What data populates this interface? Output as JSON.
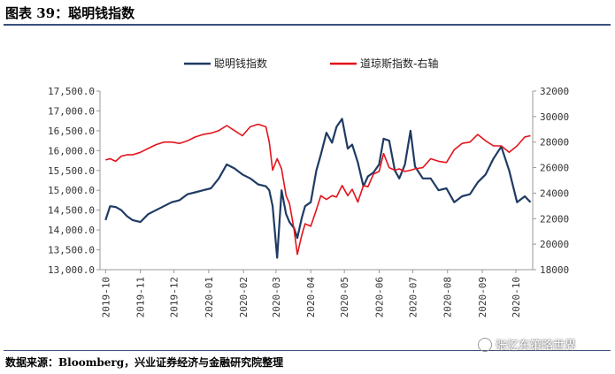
{
  "header": {
    "title": "图表 39：聪明钱指数"
  },
  "footer": {
    "source": "数据来源：Bloomberg，兴业证券经济与金融研究院整理",
    "watermark": "张忆东策略世界"
  },
  "colors": {
    "smart_money": "#1f3b63",
    "dow": "#e3131b",
    "rule": "#3a4f7a"
  },
  "chart_data": {
    "type": "line",
    "legend_position": "top-center",
    "grid": false,
    "x_ticks": [
      "2019-10",
      "2019-11",
      "2019-12",
      "2020-01",
      "2020-02",
      "2020-03",
      "2020-04",
      "2020-05",
      "2020-06",
      "2020-07",
      "2020-08",
      "2020-09",
      "2020-10"
    ],
    "y_left": {
      "lim": [
        13000,
        17500
      ],
      "ticks": [
        "13,000.0",
        "13,500.0",
        "14,000.0",
        "14,500.0",
        "15,000.0",
        "15,500.0",
        "16,000.0",
        "16,500.0",
        "17,000.0",
        "17,500.0"
      ]
    },
    "y_right": {
      "lim": [
        18000,
        32000
      ],
      "ticks": [
        "18000",
        "20000",
        "22000",
        "24000",
        "26000",
        "28000",
        "30000",
        "32000"
      ]
    },
    "series": [
      {
        "name": "聪明钱指数",
        "axis": "left",
        "x": [
          "2019-10-01",
          "2019-10-05",
          "2019-10-10",
          "2019-10-15",
          "2019-10-20",
          "2019-10-25",
          "2019-11-01",
          "2019-11-08",
          "2019-11-15",
          "2019-11-22",
          "2019-11-29",
          "2019-12-06",
          "2019-12-13",
          "2019-12-20",
          "2019-12-27",
          "2020-01-03",
          "2020-01-10",
          "2020-01-17",
          "2020-01-24",
          "2020-01-31",
          "2020-02-07",
          "2020-02-14",
          "2020-02-21",
          "2020-02-24",
          "2020-02-27",
          "2020-03-02",
          "2020-03-06",
          "2020-03-10",
          "2020-03-13",
          "2020-03-17",
          "2020-03-20",
          "2020-03-24",
          "2020-03-27",
          "2020-04-01",
          "2020-04-06",
          "2020-04-10",
          "2020-04-15",
          "2020-04-20",
          "2020-04-24",
          "2020-04-29",
          "2020-05-04",
          "2020-05-08",
          "2020-05-13",
          "2020-05-18",
          "2020-05-22",
          "2020-05-27",
          "2020-06-01",
          "2020-06-05",
          "2020-06-10",
          "2020-06-15",
          "2020-06-19",
          "2020-06-24",
          "2020-06-29",
          "2020-07-03",
          "2020-07-10",
          "2020-07-17",
          "2020-07-24",
          "2020-07-31",
          "2020-08-07",
          "2020-08-14",
          "2020-08-21",
          "2020-08-28",
          "2020-09-04",
          "2020-09-11",
          "2020-09-18",
          "2020-09-25",
          "2020-10-02",
          "2020-10-09",
          "2020-10-14"
        ],
        "values": [
          14250,
          14600,
          14580,
          14500,
          14350,
          14250,
          14200,
          14400,
          14500,
          14600,
          14700,
          14750,
          14900,
          14950,
          15000,
          15050,
          15300,
          15650,
          15550,
          15400,
          15300,
          15150,
          15100,
          15000,
          14600,
          13300,
          15000,
          14400,
          14200,
          14050,
          13800,
          14300,
          14600,
          14700,
          15500,
          15900,
          16450,
          16200,
          16600,
          16800,
          16050,
          16150,
          15700,
          15100,
          15350,
          15450,
          15650,
          16300,
          16250,
          15500,
          15300,
          15650,
          16500,
          15600,
          15300,
          15300,
          15000,
          15050,
          14700,
          14850,
          14900,
          15200,
          15400,
          15800,
          16100,
          15500,
          14700,
          14850,
          14700
        ]
      },
      {
        "name": "道琼斯指数-右轴",
        "axis": "right",
        "x": [
          "2019-10-01",
          "2019-10-05",
          "2019-10-10",
          "2019-10-15",
          "2019-10-20",
          "2019-10-25",
          "2019-11-01",
          "2019-11-08",
          "2019-11-15",
          "2019-11-22",
          "2019-11-29",
          "2019-12-06",
          "2019-12-13",
          "2019-12-20",
          "2019-12-27",
          "2020-01-03",
          "2020-01-10",
          "2020-01-17",
          "2020-01-24",
          "2020-01-31",
          "2020-02-07",
          "2020-02-14",
          "2020-02-21",
          "2020-02-24",
          "2020-02-27",
          "2020-03-02",
          "2020-03-06",
          "2020-03-10",
          "2020-03-13",
          "2020-03-17",
          "2020-03-20",
          "2020-03-24",
          "2020-03-27",
          "2020-04-01",
          "2020-04-06",
          "2020-04-10",
          "2020-04-15",
          "2020-04-20",
          "2020-04-24",
          "2020-04-29",
          "2020-05-04",
          "2020-05-08",
          "2020-05-13",
          "2020-05-18",
          "2020-05-22",
          "2020-05-27",
          "2020-06-01",
          "2020-06-05",
          "2020-06-10",
          "2020-06-15",
          "2020-06-19",
          "2020-06-24",
          "2020-06-29",
          "2020-07-03",
          "2020-07-10",
          "2020-07-17",
          "2020-07-24",
          "2020-07-31",
          "2020-08-07",
          "2020-08-14",
          "2020-08-21",
          "2020-08-28",
          "2020-09-04",
          "2020-09-11",
          "2020-09-18",
          "2020-09-25",
          "2020-10-02",
          "2020-10-09",
          "2020-10-14"
        ],
        "values": [
          26600,
          26700,
          26500,
          26900,
          27000,
          27000,
          27200,
          27500,
          27800,
          28000,
          28000,
          27900,
          28100,
          28400,
          28600,
          28700,
          28900,
          29300,
          28900,
          28500,
          29200,
          29400,
          29200,
          28000,
          25800,
          26700,
          25900,
          23800,
          23200,
          21200,
          19200,
          20700,
          21600,
          21400,
          22700,
          23800,
          23500,
          23800,
          23700,
          24600,
          23800,
          24300,
          23300,
          24600,
          24500,
          25500,
          25700,
          27100,
          26000,
          25800,
          25900,
          25700,
          25800,
          25900,
          26000,
          26700,
          26500,
          26400,
          27400,
          27900,
          28000,
          28600,
          28100,
          27700,
          27700,
          27200,
          27700,
          28400,
          28500
        ]
      }
    ]
  }
}
